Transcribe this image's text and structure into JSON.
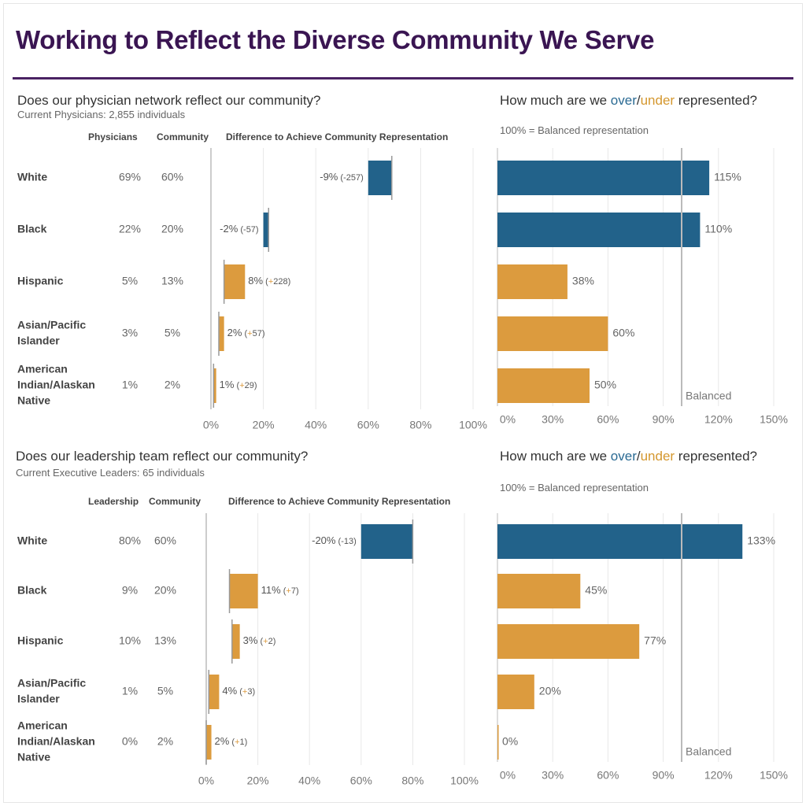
{
  "page": {
    "title": "Working to Reflect the Diverse Community We Serve"
  },
  "colors": {
    "over": "#22628a",
    "under": "#dc9b3e",
    "title": "#3a1552",
    "grid": "#e8e8e8",
    "axis": "#bbbbbb",
    "text": "#555555"
  },
  "sections": [
    {
      "question": "Does our physician network reflect our community?",
      "subtitle": "Current Physicians: 2,855 individuals",
      "col_group": "Physicians",
      "col_community": "Community",
      "col_diff": "Difference to Achieve Community Representation",
      "right_question_prefix": "How much are we ",
      "right_over": "over",
      "right_slash": "/",
      "right_under": "under",
      "right_question_suffix": " represented?",
      "balanced_note": "100% = Balanced representation",
      "balanced_label": "Balanced"
    },
    {
      "question": "Does our leadership team reflect our community?",
      "subtitle": "Current Executive Leaders: 65 individuals",
      "col_group": "Leadership",
      "col_community": "Community",
      "col_diff": "Difference to Achieve Community Representation",
      "right_question_prefix": "How much are we ",
      "right_over": "over",
      "right_slash": "/",
      "right_under": "under",
      "right_question_suffix": " represented?",
      "balanced_note": "100% = Balanced representation",
      "balanced_label": "Balanced"
    }
  ],
  "chart_data": [
    {
      "type": "table",
      "title": "Does our physician network reflect our community?",
      "columns": [
        "Group",
        "Physicians",
        "Community"
      ],
      "rows": [
        [
          "White",
          "69%",
          "60%"
        ],
        [
          "Black",
          "22%",
          "20%"
        ],
        [
          "Hispanic",
          "5%",
          "13%"
        ],
        [
          "Asian/Pacific Islander",
          "3%",
          "5%"
        ],
        [
          "American Indian/Alaskan Native",
          "1%",
          "2%"
        ]
      ]
    },
    {
      "type": "bar",
      "subtype": "range",
      "title": "Difference to Achieve Community Representation",
      "categories": [
        "White",
        "Black",
        "Hispanic",
        "Asian/Pacific Islander",
        "American Indian/Alaskan Native"
      ],
      "series": [
        {
          "name": "Physicians",
          "values": [
            69,
            22,
            5,
            3,
            1
          ]
        },
        {
          "name": "Community",
          "values": [
            60,
            20,
            13,
            5,
            2
          ]
        }
      ],
      "labels": [
        {
          "pct": "-9%",
          "count": "-257",
          "sign": "-",
          "num": "257"
        },
        {
          "pct": "-2%",
          "count": "-57",
          "sign": "-",
          "num": "57"
        },
        {
          "pct": "8%",
          "count": "+228",
          "sign": "+",
          "num": "228"
        },
        {
          "pct": "2%",
          "count": "+57",
          "sign": "+",
          "num": "57"
        },
        {
          "pct": "1%",
          "count": "+29",
          "sign": "+",
          "num": "29"
        }
      ],
      "xlim": [
        0,
        100
      ],
      "xticks": [
        0,
        20,
        40,
        60,
        80,
        100
      ],
      "xtick_labels": [
        "0%",
        "20%",
        "40%",
        "60%",
        "80%",
        "100%"
      ],
      "grid": true
    },
    {
      "type": "bar",
      "title": "How much are we over/under represented?",
      "subtitle": "100% = Balanced representation",
      "categories": [
        "White",
        "Black",
        "Hispanic",
        "Asian/Pacific Islander",
        "American Indian/Alaskan Native"
      ],
      "values": [
        115,
        110,
        38,
        60,
        50
      ],
      "value_labels": [
        "115%",
        "110%",
        "38%",
        "60%",
        "50%"
      ],
      "status": [
        "over",
        "over",
        "under",
        "under",
        "under"
      ],
      "reference_line": {
        "value": 100,
        "label": "Balanced"
      },
      "xlim": [
        0,
        160
      ],
      "xticks": [
        0,
        30,
        60,
        90,
        120,
        150
      ],
      "xtick_labels": [
        "0%",
        "30%",
        "60%",
        "90%",
        "120%",
        "150%"
      ],
      "grid": true
    },
    {
      "type": "table",
      "title": "Does our leadership team reflect our community?",
      "columns": [
        "Group",
        "Leadership",
        "Community"
      ],
      "rows": [
        [
          "White",
          "80%",
          "60%"
        ],
        [
          "Black",
          "9%",
          "20%"
        ],
        [
          "Hispanic",
          "10%",
          "13%"
        ],
        [
          "Asian/Pacific Islander",
          "1%",
          "5%"
        ],
        [
          "American Indian/Alaskan Native",
          "0%",
          "2%"
        ]
      ]
    },
    {
      "type": "bar",
      "subtype": "range",
      "title": "Difference to Achieve Community Representation",
      "categories": [
        "White",
        "Black",
        "Hispanic",
        "Asian/Pacific Islander",
        "American Indian/Alaskan Native"
      ],
      "series": [
        {
          "name": "Leadership",
          "values": [
            80,
            9,
            10,
            1,
            0
          ]
        },
        {
          "name": "Community",
          "values": [
            60,
            20,
            13,
            5,
            2
          ]
        }
      ],
      "labels": [
        {
          "pct": "-20%",
          "count": "-13",
          "sign": "-",
          "num": "13"
        },
        {
          "pct": "11%",
          "count": "+7",
          "sign": "+",
          "num": "7"
        },
        {
          "pct": "3%",
          "count": "+2",
          "sign": "+",
          "num": "2"
        },
        {
          "pct": "4%",
          "count": "+3",
          "sign": "+",
          "num": "3"
        },
        {
          "pct": "2%",
          "count": "+1",
          "sign": "+",
          "num": "1"
        }
      ],
      "xlim": [
        0,
        100
      ],
      "xticks": [
        0,
        20,
        40,
        60,
        80,
        100
      ],
      "xtick_labels": [
        "0%",
        "20%",
        "40%",
        "60%",
        "80%",
        "100%"
      ],
      "grid": true
    },
    {
      "type": "bar",
      "title": "How much are we over/under represented?",
      "subtitle": "100% = Balanced representation",
      "categories": [
        "White",
        "Black",
        "Hispanic",
        "Asian/Pacific Islander",
        "American Indian/Alaskan Native"
      ],
      "values": [
        133,
        45,
        77,
        20,
        0
      ],
      "value_labels": [
        "133%",
        "45%",
        "77%",
        "20%",
        "0%"
      ],
      "status": [
        "over",
        "under",
        "under",
        "under",
        "under"
      ],
      "reference_line": {
        "value": 100,
        "label": "Balanced"
      },
      "xlim": [
        0,
        160
      ],
      "xticks": [
        0,
        30,
        60,
        90,
        120,
        150
      ],
      "xtick_labels": [
        "0%",
        "30%",
        "60%",
        "90%",
        "120%",
        "150%"
      ],
      "grid": true
    }
  ],
  "row_labels": [
    [
      "White"
    ],
    [
      "Black"
    ],
    [
      "Hispanic"
    ],
    [
      "Asian/Pacific",
      "Islander"
    ],
    [
      "American",
      "Indian/Alaskan",
      "Native"
    ]
  ]
}
